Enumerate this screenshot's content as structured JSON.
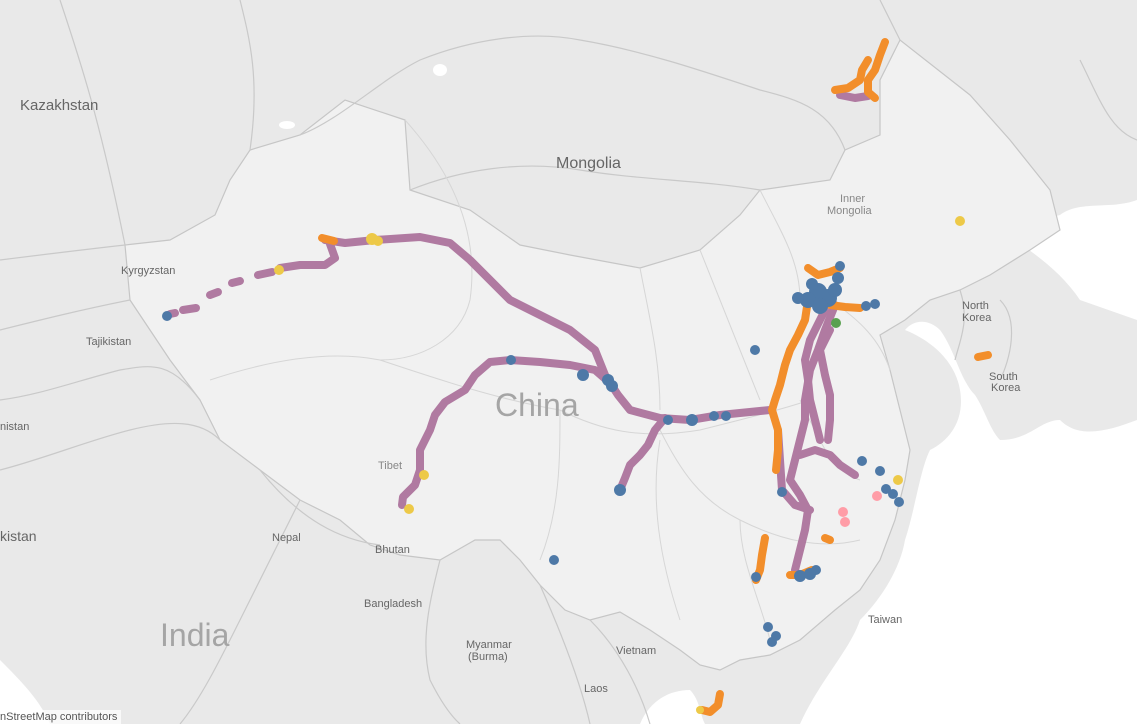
{
  "map": {
    "country_labels": {
      "kazakhstan": "Kazakhstan",
      "mongolia": "Mongolia",
      "china": "China",
      "india": "India",
      "kyrgyzstan": "Kyrgyzstan",
      "tajikistan": "Tajikistan",
      "pakistan_partial": "kistan",
      "afghanistan_partial": "nistan",
      "nepal": "Nepal",
      "bhutan": "Bhutan",
      "bangladesh": "Bangladesh",
      "myanmar_line1": "Myanmar",
      "myanmar_line2": "(Burma)",
      "vietnam": "Vietnam",
      "laos": "Laos",
      "taiwan": "Taiwan",
      "north_korea_line1": "North",
      "north_korea_line2": "Korea",
      "south_korea_line1": "South",
      "south_korea_line2": "Korea"
    },
    "region_labels": {
      "inner_mongolia_line1": "Inner",
      "inner_mongolia_line2": "Mongolia",
      "tibet": "Tibet"
    },
    "attribution": "© OpenStreetMap contributors",
    "attribution_visible": "nStreetMap contributors"
  },
  "colors": {
    "land": "#e9e9e9",
    "china_fill": "#f2f2f2",
    "sea": "#ffffff",
    "border": "#c6c6c6",
    "purple": "#b07aa1",
    "orange": "#f28e2b",
    "blue": "#4e79a7",
    "yellow": "#edc948",
    "pink": "#ff9da7",
    "green": "#59a14f"
  }
}
